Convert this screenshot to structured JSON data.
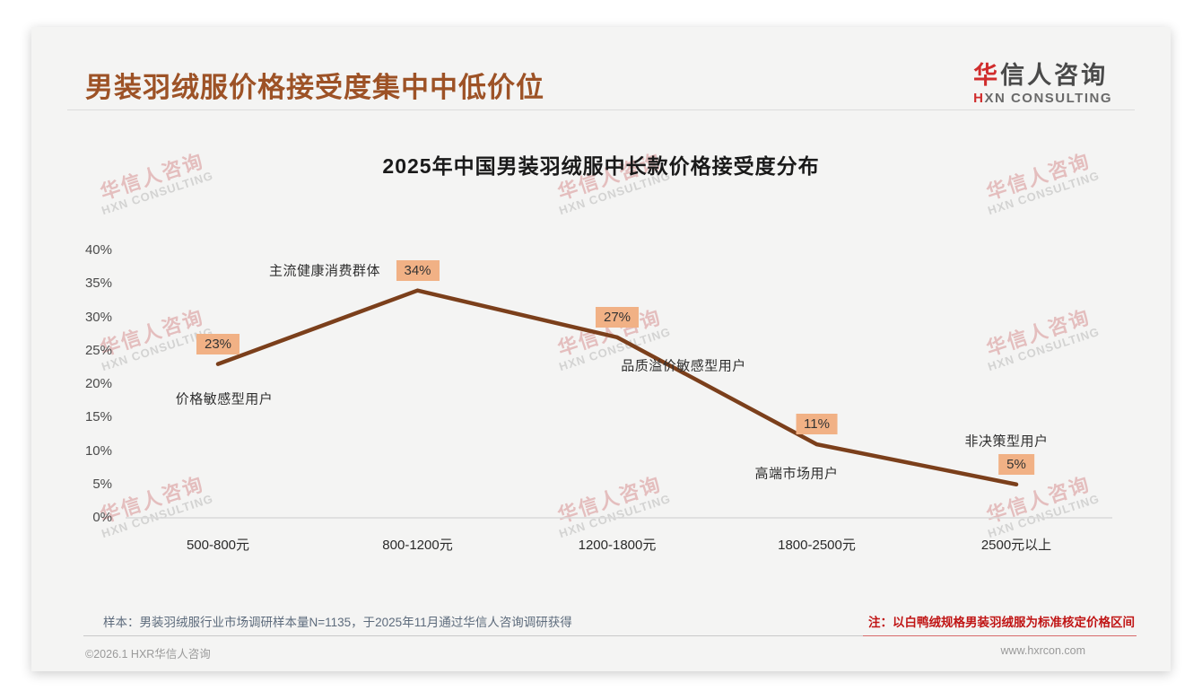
{
  "header": {
    "title": "男装羽绒服价格接受度集中中低价位",
    "logo": {
      "zh_accent": "华",
      "zh_rest": "信人咨询",
      "en_accent": "H",
      "en_rest": "XN CONSULTING"
    }
  },
  "watermark": {
    "zh": "华信人咨询",
    "en": "HXN CONSULTING"
  },
  "chart_data": {
    "type": "line",
    "title": "2025年中国男装羽绒服中长款价格接受度分布",
    "categories": [
      "500-800元",
      "800-1200元",
      "1200-1800元",
      "1800-2500元",
      "2500元以上"
    ],
    "values": [
      23,
      34,
      27,
      11,
      5
    ],
    "data_labels": [
      "23%",
      "34%",
      "27%",
      "11%",
      "5%"
    ],
    "annotations": [
      "价格敏感型用户",
      "主流健康消费群体",
      "品质溢价敏感型用户",
      "高端市场用户",
      "非决策型用户"
    ],
    "y_ticks": [
      "40%",
      "35%",
      "30%",
      "25%",
      "20%",
      "15%",
      "10%",
      "5%",
      "0%"
    ],
    "ylim": [
      0,
      40
    ],
    "xlabel": "",
    "ylabel": "",
    "grid": false,
    "legend_position": "none",
    "line_color": "#7b3f1b",
    "badge_color": "#f1b185"
  },
  "footer": {
    "sample_note": "样本：男装羽绒服行业市场调研样本量N=1135，于2025年11月通过华信人咨询调研获得",
    "price_note": "注：以白鸭绒规格男装羽绒服为标准核定价格区间",
    "copyright": "©2026.1 HXR华信人咨询",
    "website": "www.hxrcon.com"
  },
  "colors": {
    "title_brown": "#9d5226",
    "logo_red": "#d02c2c",
    "note_red": "#c01515",
    "card_bg": "#f4f4f3",
    "axis_gray": "#d9d9d9"
  }
}
